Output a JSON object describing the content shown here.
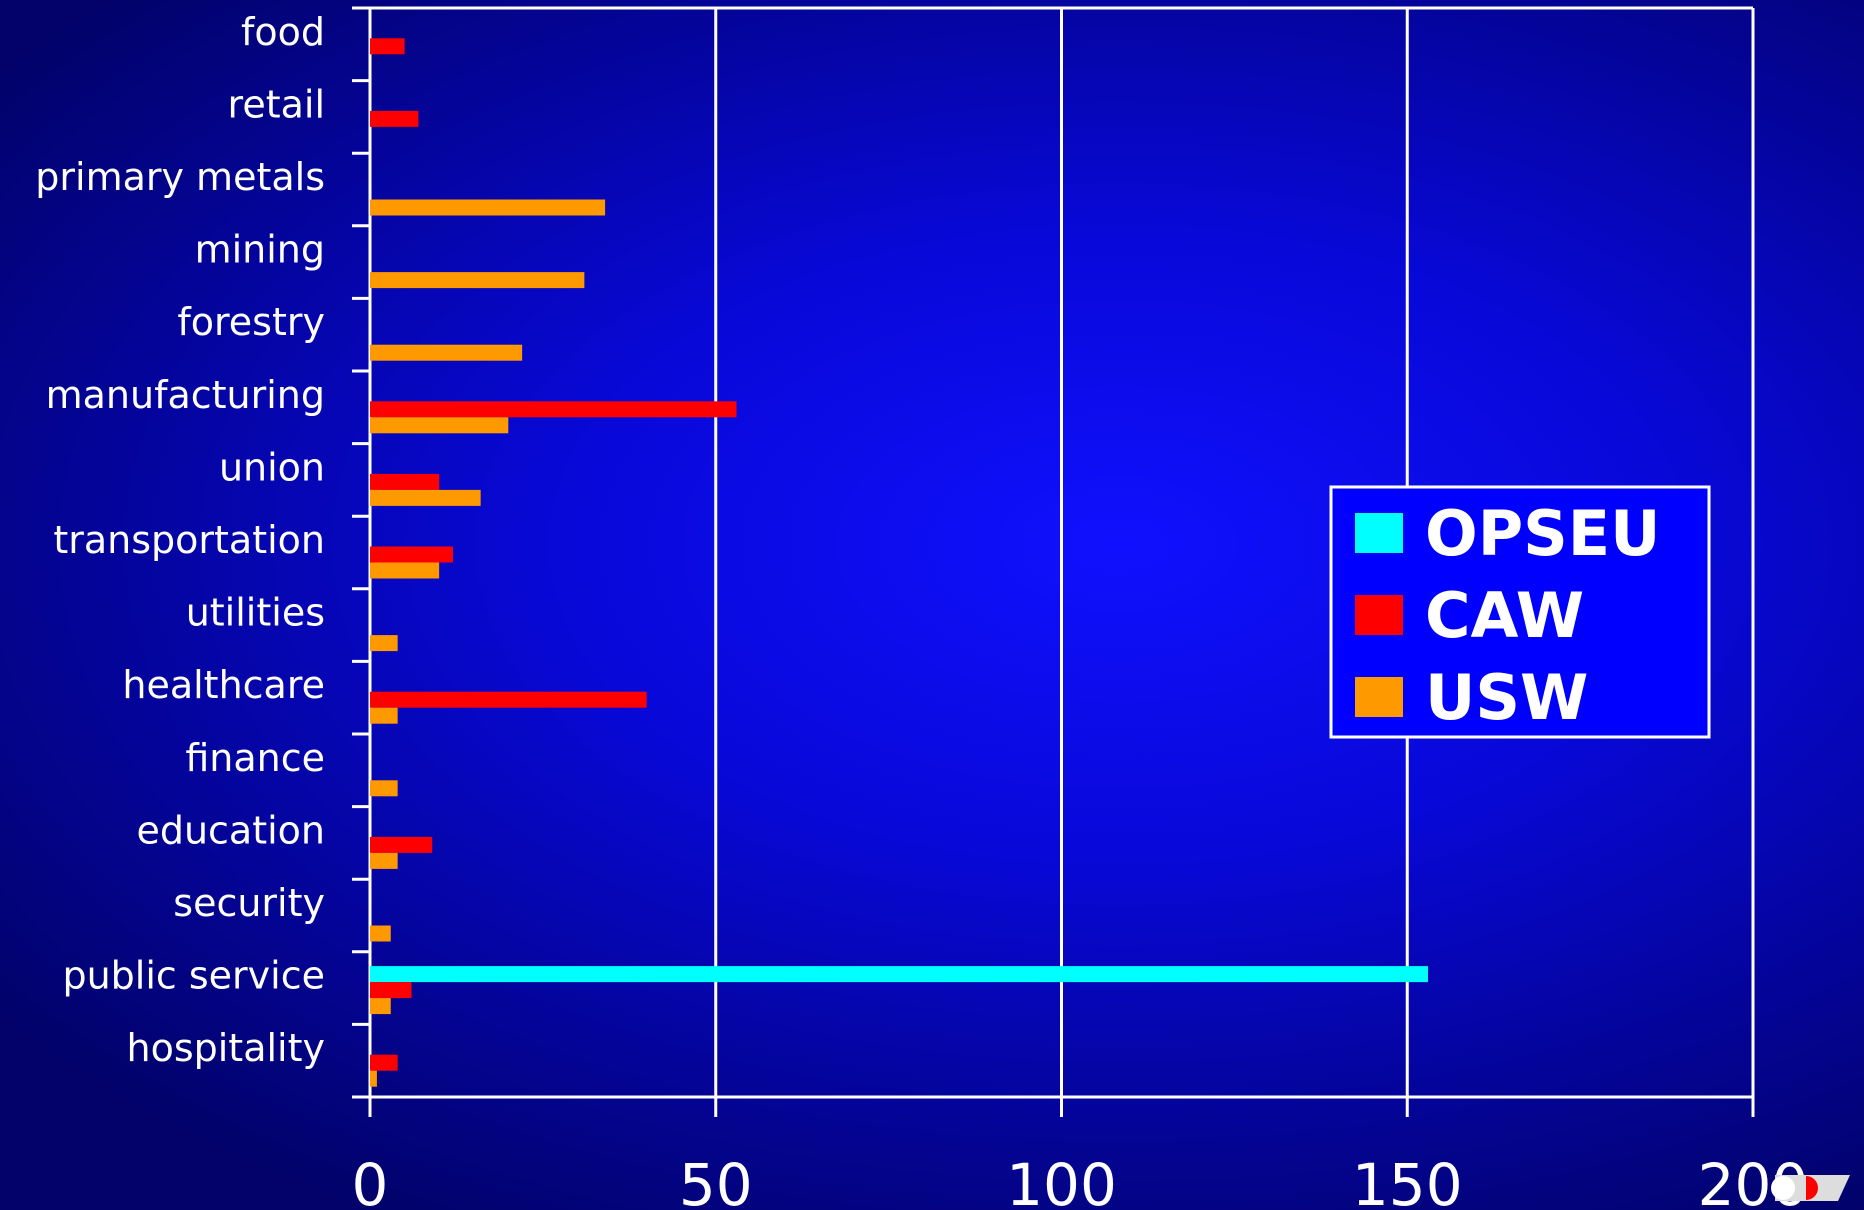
{
  "chart_data": {
    "type": "bar",
    "orientation": "horizontal",
    "categories": [
      "food",
      "retail",
      "primary metals",
      "mining",
      "forestry",
      "manufacturing",
      "union",
      "transportation",
      "utilities",
      "healthcare",
      "finance",
      "education",
      "security",
      "public service",
      "hospitality"
    ],
    "series": [
      {
        "name": "OPSEU",
        "color": "#00ffff",
        "values": [
          0,
          0,
          0,
          0,
          0,
          0,
          0,
          0,
          0,
          0,
          0,
          0,
          0,
          153,
          0
        ]
      },
      {
        "name": "CAW",
        "color": "#ff0000",
        "values": [
          5,
          7,
          0,
          0,
          0,
          53,
          10,
          12,
          0,
          40,
          0,
          9,
          0,
          6,
          4
        ]
      },
      {
        "name": "USW",
        "color": "#ff9900",
        "values": [
          0,
          0,
          34,
          31,
          22,
          20,
          16,
          10,
          4,
          4,
          4,
          4,
          3,
          3,
          1
        ]
      }
    ],
    "x_ticks": [
      "0",
      "50",
      "100",
      "150",
      "200"
    ],
    "xlim": [
      0,
      200
    ],
    "grid": "vertical",
    "legend_position": "right",
    "title": "",
    "xlabel": "",
    "ylabel": ""
  }
}
